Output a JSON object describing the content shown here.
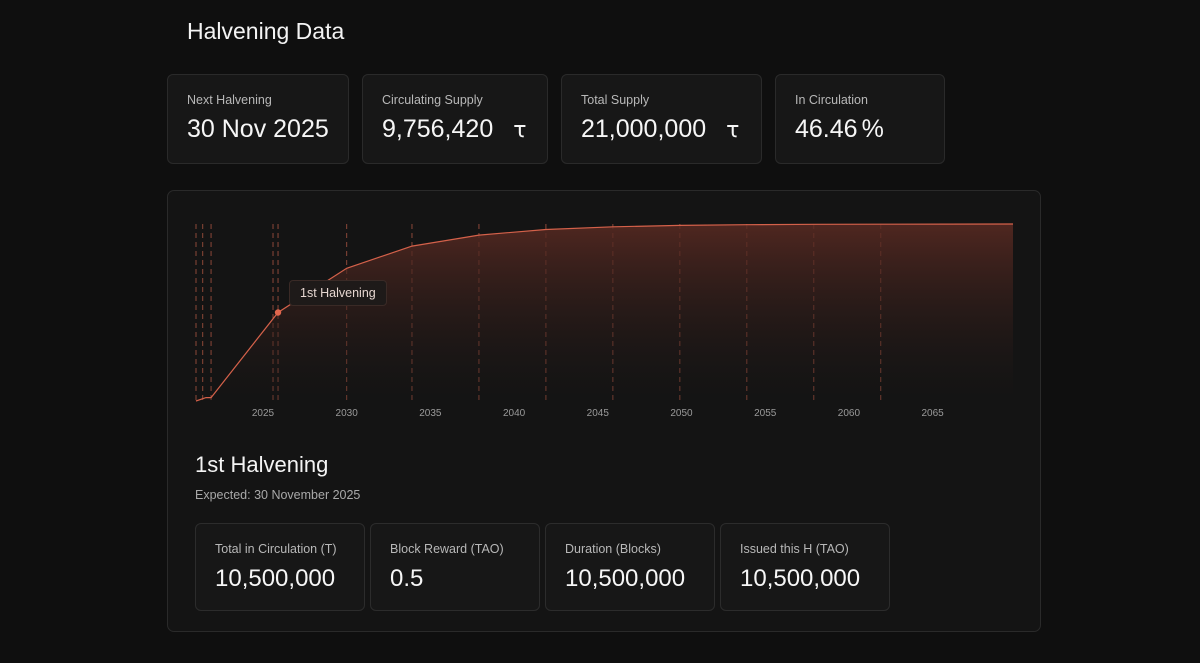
{
  "page": {
    "title": "Halvening Data"
  },
  "stats": [
    {
      "label": "Next Halvening",
      "value": "30 Nov 2025",
      "unit": ""
    },
    {
      "label": "Circulating Supply",
      "value": "9,756,420",
      "unit": "τ"
    },
    {
      "label": "Total Supply",
      "value": "21,000,000",
      "unit": "τ"
    },
    {
      "label": "In Circulation",
      "value": "46.46",
      "unit": "%"
    }
  ],
  "chart": {
    "tooltip": "1st Halvening"
  },
  "chart_data": {
    "type": "area",
    "title": "",
    "xlabel": "",
    "ylabel": "",
    "x_ticks": [
      2025,
      2030,
      2035,
      2040,
      2045,
      2050,
      2055,
      2060,
      2065
    ],
    "xlim": [
      2021.0,
      2069.8
    ],
    "ylim": [
      0,
      21000000
    ],
    "series": [
      {
        "x": [
          2021.0,
          2021.6,
          2021.9,
          2025.9,
          2030.0,
          2033.9,
          2037.9,
          2041.9,
          2045.9,
          2049.9,
          2053.9,
          2057.9,
          2061.9,
          2065.9,
          2069.8
        ],
        "values": [
          0,
          400000,
          400000,
          10500000,
          15750000,
          18375000,
          19687500,
          20343750,
          20671875,
          20835938,
          20917969,
          20958984,
          20979492,
          20989746,
          21000000
        ]
      }
    ],
    "halvening_lines": [
      2021.0,
      2021.4,
      2021.9,
      2025.6,
      2025.9,
      2030.0,
      2033.9,
      2037.9,
      2041.9,
      2045.9,
      2049.9,
      2053.9,
      2057.9,
      2061.9
    ],
    "highlight": {
      "x": 2025.9,
      "y": 10500000,
      "label": "1st Halvening"
    },
    "grid": false,
    "colors": {
      "line": "#d4614a",
      "fill": "#5a2a22",
      "dash": "#a0503f",
      "tick": "#9a9a9a"
    }
  },
  "detail": {
    "title": "1st Halvening",
    "subtitle": "Expected: 30 November 2025",
    "cards": [
      {
        "label": "Total in Circulation (T)",
        "value": "10,500,000"
      },
      {
        "label": "Block Reward (TAO)",
        "value": "0.5"
      },
      {
        "label": "Duration (Blocks)",
        "value": "10,500,000"
      },
      {
        "label": "Issued this H (TAO)",
        "value": "10,500,000"
      }
    ]
  }
}
